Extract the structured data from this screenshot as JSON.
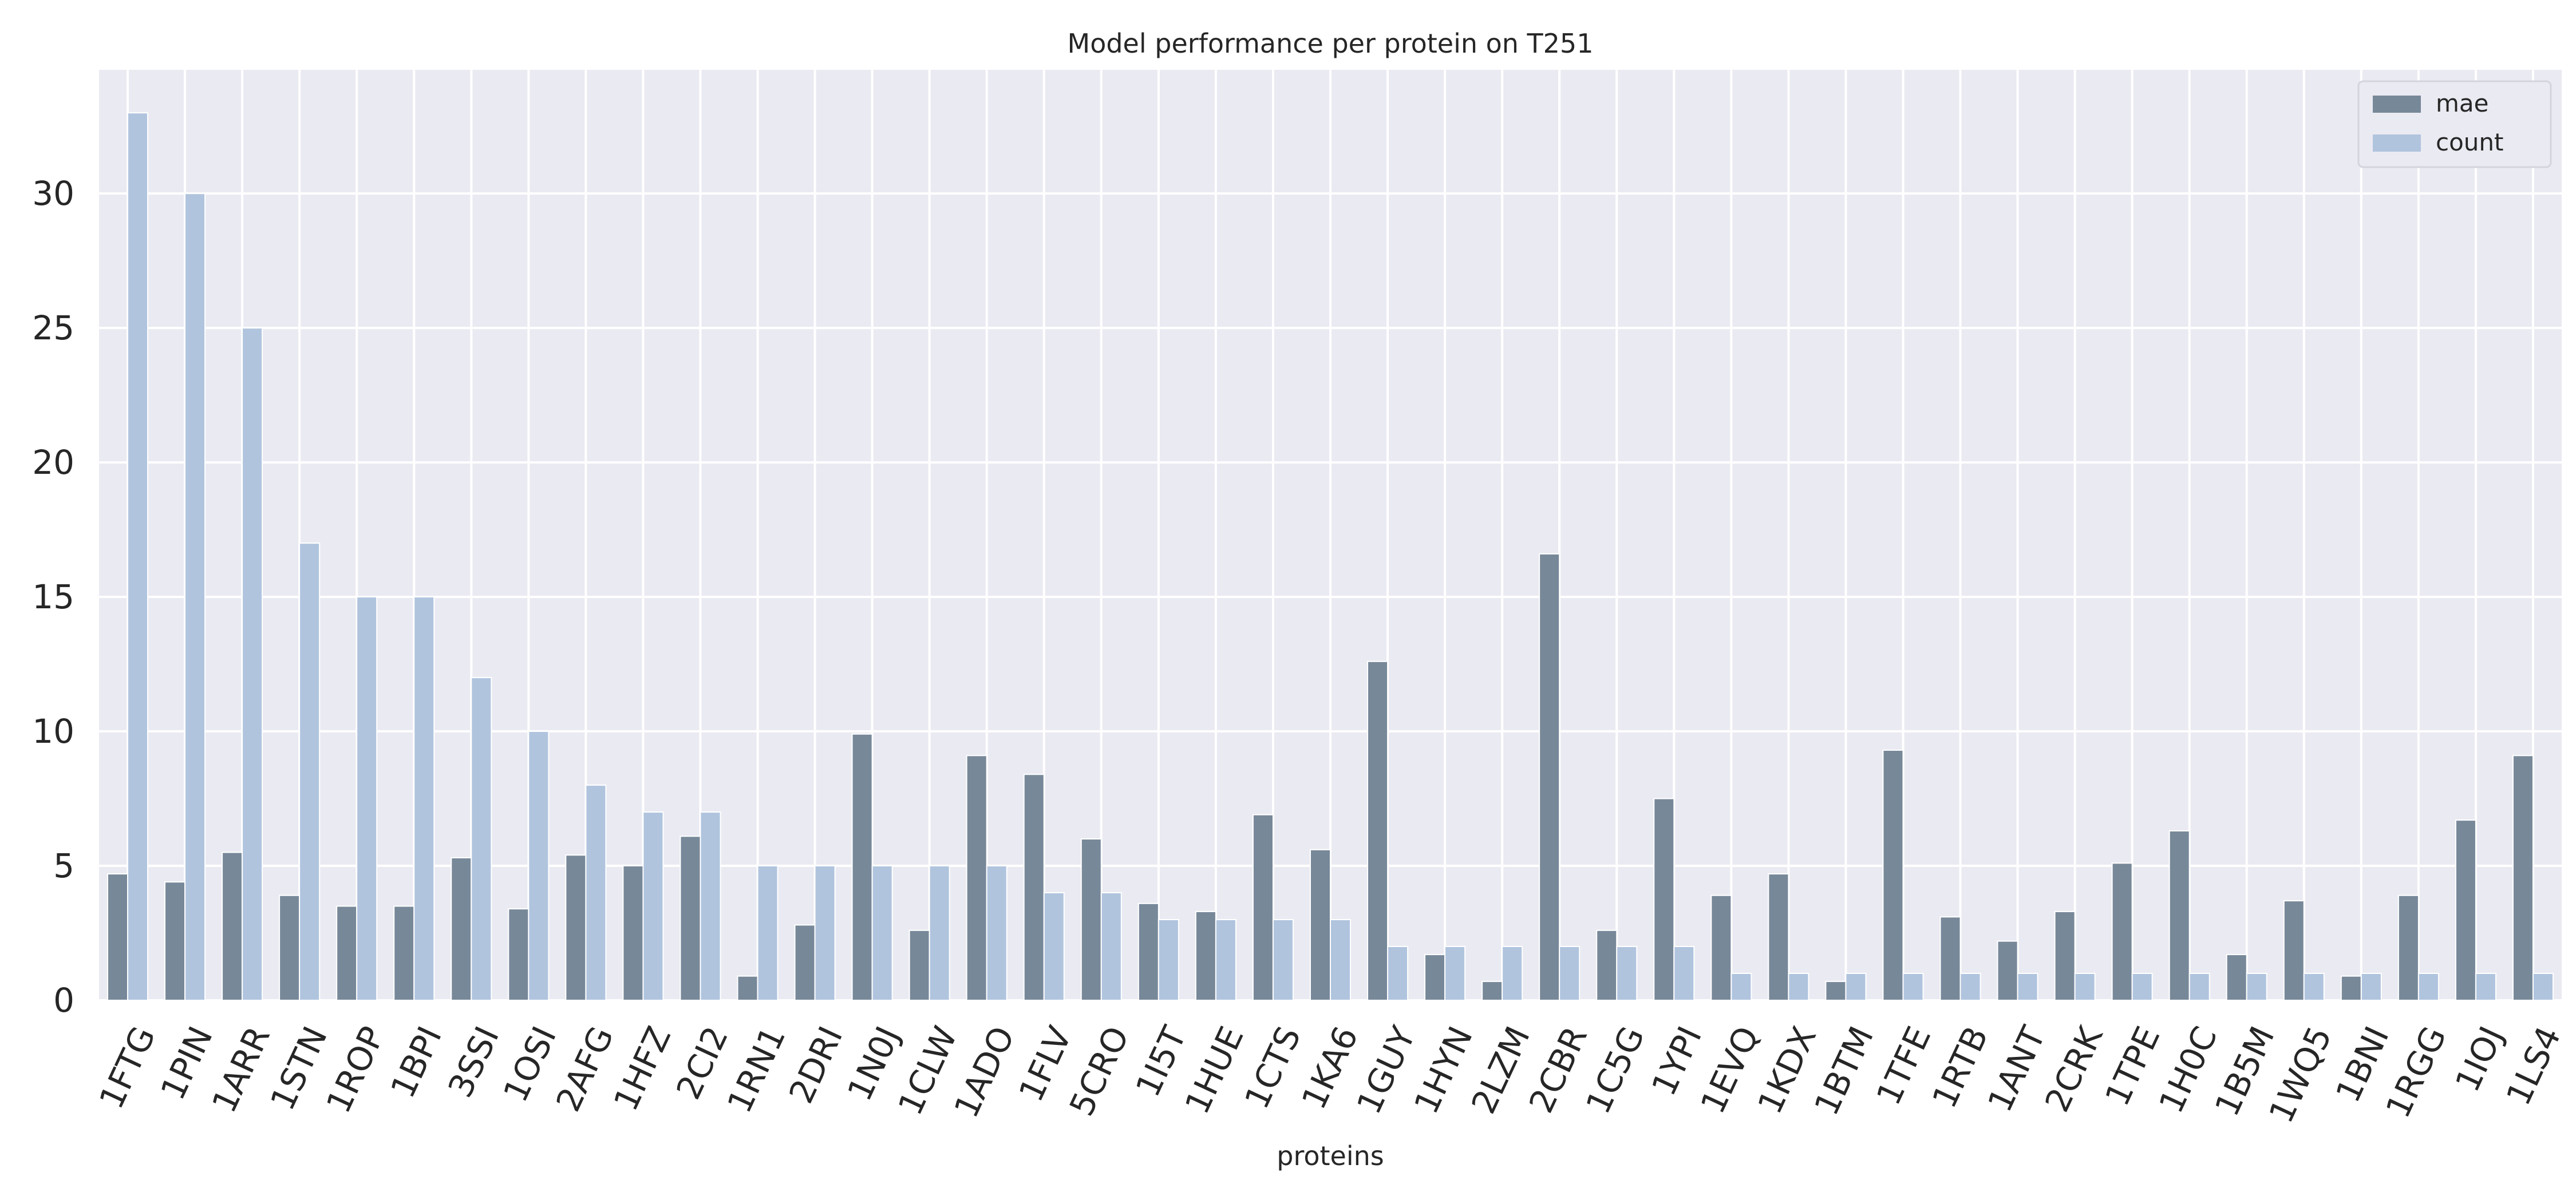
{
  "chart_data": {
    "type": "bar",
    "title": "Model performance per protein on T251",
    "xlabel": "proteins",
    "ylabel": "",
    "ylim": [
      0,
      34.6
    ],
    "yticks": [
      0,
      5,
      10,
      15,
      20,
      25,
      30
    ],
    "grid": true,
    "legend_position": "top-right",
    "categories": [
      "1FTG",
      "1PIN",
      "1ARR",
      "1STN",
      "1ROP",
      "1BPI",
      "3SSI",
      "1OSI",
      "2AFG",
      "1HFZ",
      "2CI2",
      "1RN1",
      "2DRI",
      "1N0J",
      "1CLW",
      "1ADO",
      "1FLV",
      "5CRO",
      "1I5T",
      "1HUE",
      "1CTS",
      "1KA6",
      "1GUY",
      "1HYN",
      "2LZM",
      "2CBR",
      "1C5G",
      "1YPI",
      "1EVQ",
      "1KDX",
      "1BTM",
      "1TFE",
      "1RTB",
      "1ANT",
      "2CRK",
      "1TPE",
      "1H0C",
      "1B5M",
      "1WQ5",
      "1BNI",
      "1RGG",
      "1IOJ",
      "1LS4"
    ],
    "series": [
      {
        "name": "mae",
        "color": "#778899",
        "values": [
          4.7,
          4.4,
          5.5,
          3.9,
          3.5,
          3.5,
          5.3,
          3.4,
          5.4,
          5.0,
          6.1,
          0.9,
          2.8,
          9.9,
          2.6,
          9.1,
          8.4,
          6.0,
          3.6,
          3.3,
          6.9,
          5.6,
          12.6,
          1.7,
          0.7,
          16.6,
          2.6,
          7.5,
          3.9,
          4.7,
          0.7,
          9.3,
          3.1,
          2.2,
          3.3,
          5.1,
          6.3,
          1.7,
          3.7,
          0.9,
          3.9,
          6.7,
          9.1
        ]
      },
      {
        "name": "count",
        "color": "#B0C4DE",
        "values": [
          33,
          30,
          25,
          17,
          15,
          15,
          12,
          10,
          8,
          7,
          7,
          5,
          5,
          5,
          5,
          5,
          4,
          4,
          3,
          3,
          3,
          3,
          2,
          2,
          2,
          2,
          2,
          2,
          1,
          1,
          1,
          1,
          1,
          1,
          1,
          1,
          1,
          1,
          1,
          1,
          1,
          1,
          1
        ]
      }
    ]
  }
}
